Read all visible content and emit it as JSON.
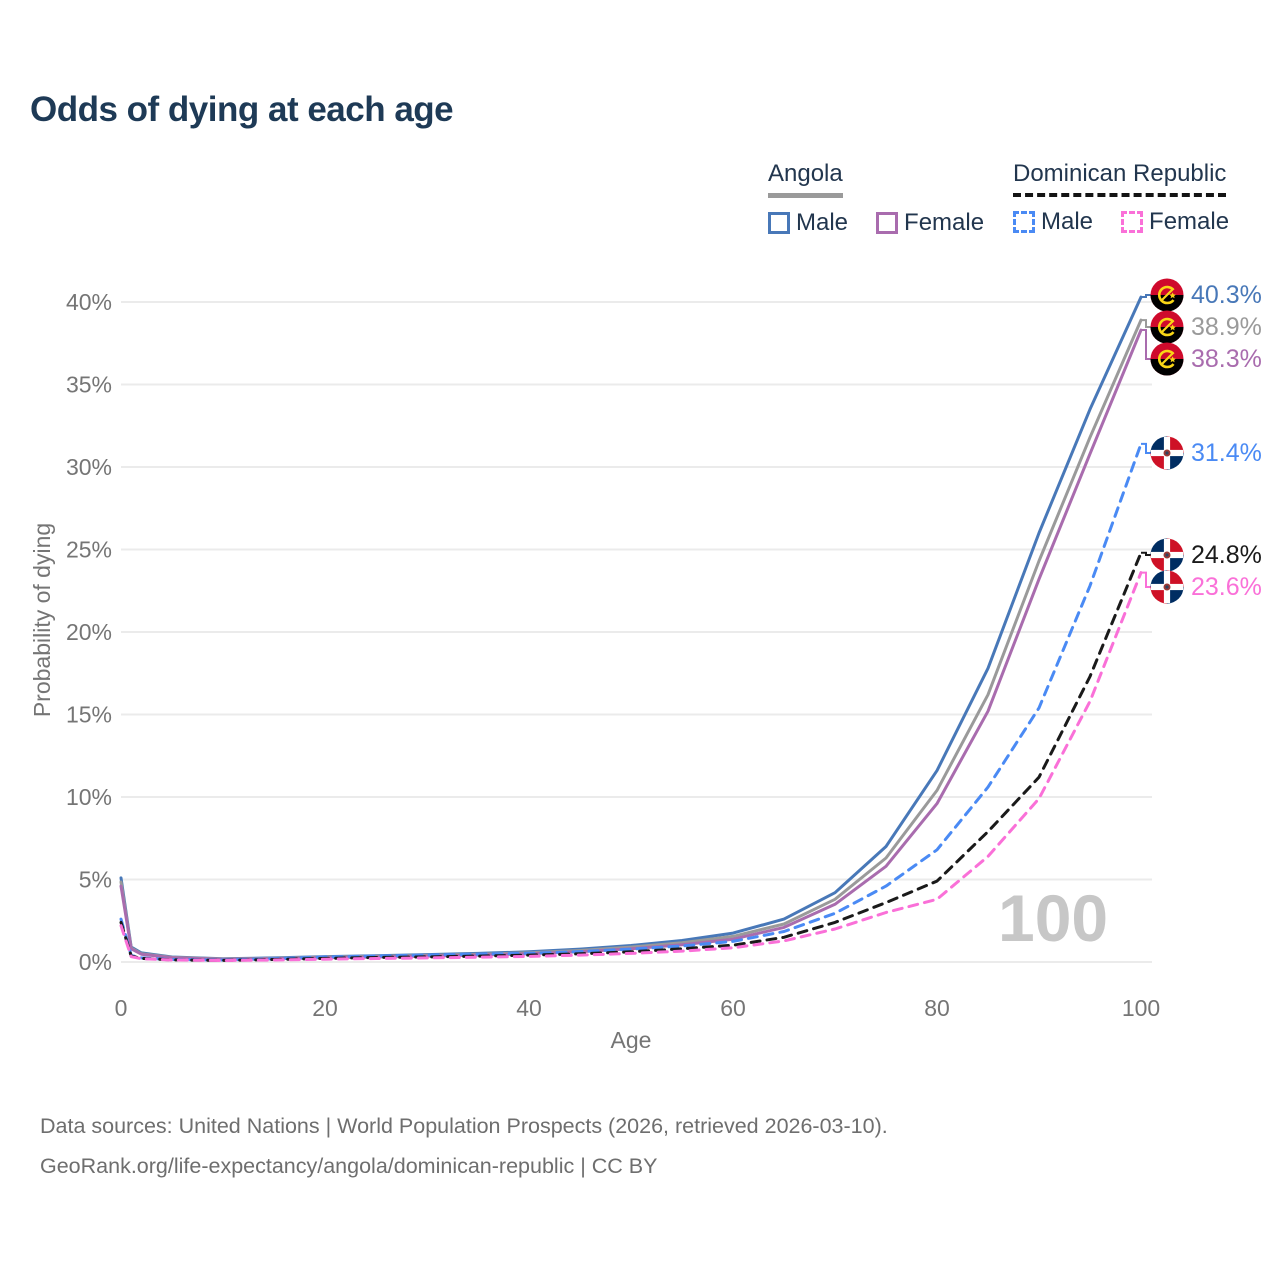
{
  "title": "Odds of dying at each age",
  "legend": {
    "groups": [
      {
        "label": "Angola",
        "line_style": "solid",
        "underline_color": "#9a9a9a",
        "items": [
          {
            "label": "Male",
            "color": "#4878b8"
          },
          {
            "label": "Female",
            "color": "#a96cae"
          }
        ]
      },
      {
        "label": "Dominican Republic",
        "line_style": "dashed",
        "underline_color": "#141414",
        "items": [
          {
            "label": "Male",
            "color": "#4a8af4"
          },
          {
            "label": "Female",
            "color": "#fa70d8"
          }
        ]
      }
    ]
  },
  "chart_data": {
    "type": "line",
    "title": "Odds of dying at each age",
    "xlabel": "Age",
    "ylabel": "Probability of dying",
    "xlim": [
      0,
      100
    ],
    "ylim": [
      0,
      42
    ],
    "xticks": [
      0,
      20,
      40,
      60,
      80,
      100
    ],
    "yticks": [
      0,
      5,
      10,
      15,
      20,
      25,
      30,
      35,
      40
    ],
    "ytick_suffix": "%",
    "grid": "horizontal",
    "legend_position": "top-right",
    "watermark": "100",
    "x": [
      0,
      1,
      2,
      5,
      10,
      15,
      20,
      25,
      30,
      35,
      40,
      45,
      50,
      55,
      60,
      65,
      70,
      75,
      80,
      85,
      90,
      95,
      100
    ],
    "series": [
      {
        "name": "Angola Male",
        "country": "Angola",
        "color": "#4878b8",
        "dash": "solid",
        "end_label": "40.3%",
        "values": [
          5.1,
          0.9,
          0.55,
          0.3,
          0.2,
          0.25,
          0.33,
          0.38,
          0.45,
          0.52,
          0.62,
          0.78,
          1.0,
          1.3,
          1.75,
          2.6,
          4.2,
          7.0,
          11.6,
          17.8,
          26.0,
          33.5,
          40.3
        ]
      },
      {
        "name": "Angola",
        "country": "Angola",
        "color": "#9a9a9a",
        "dash": "solid",
        "end_label": "38.9%",
        "values": [
          4.85,
          0.85,
          0.5,
          0.28,
          0.18,
          0.22,
          0.3,
          0.34,
          0.4,
          0.47,
          0.56,
          0.7,
          0.9,
          1.17,
          1.55,
          2.3,
          3.8,
          6.3,
          10.4,
          16.2,
          24.3,
          31.8,
          38.9
        ]
      },
      {
        "name": "Angola Female",
        "country": "Angola",
        "color": "#a96cae",
        "dash": "solid",
        "end_label": "38.3%",
        "values": [
          4.6,
          0.8,
          0.47,
          0.26,
          0.16,
          0.2,
          0.26,
          0.3,
          0.36,
          0.42,
          0.5,
          0.62,
          0.8,
          1.05,
          1.38,
          2.1,
          3.5,
          5.8,
          9.6,
          15.2,
          23.2,
          30.8,
          38.3
        ]
      },
      {
        "name": "Dominican Republic Male",
        "country": "Dominican Republic",
        "color": "#4a8af4",
        "dash": "dashed",
        "end_label": "31.4%",
        "values": [
          2.6,
          0.4,
          0.25,
          0.15,
          0.12,
          0.2,
          0.3,
          0.36,
          0.42,
          0.47,
          0.53,
          0.63,
          0.78,
          0.97,
          1.25,
          1.85,
          2.95,
          4.6,
          6.8,
          10.6,
          15.4,
          22.8,
          31.4
        ]
      },
      {
        "name": "Dominican Republic",
        "country": "Dominican Republic",
        "color": "#1a1a1a",
        "dash": "dashed",
        "end_label": "24.8%",
        "values": [
          2.4,
          0.36,
          0.22,
          0.13,
          0.1,
          0.15,
          0.22,
          0.27,
          0.31,
          0.36,
          0.42,
          0.5,
          0.62,
          0.8,
          1.02,
          1.5,
          2.4,
          3.6,
          4.9,
          7.9,
          11.2,
          17.3,
          24.8
        ]
      },
      {
        "name": "Dominican Republic Female",
        "country": "Dominican Republic",
        "color": "#fa70d8",
        "dash": "dashed",
        "end_label": "23.6%",
        "values": [
          2.2,
          0.32,
          0.2,
          0.12,
          0.09,
          0.12,
          0.17,
          0.21,
          0.25,
          0.29,
          0.34,
          0.42,
          0.52,
          0.66,
          0.86,
          1.28,
          2.0,
          3.0,
          3.8,
          6.4,
          9.9,
          15.8,
          23.6
        ]
      }
    ]
  },
  "footer": {
    "line1": "Data sources: United Nations | World Population Prospects (2026, retrieved 2026-03-10).",
    "line2": "GeoRank.org/life-expectancy/angola/dominican-republic | CC BY"
  }
}
